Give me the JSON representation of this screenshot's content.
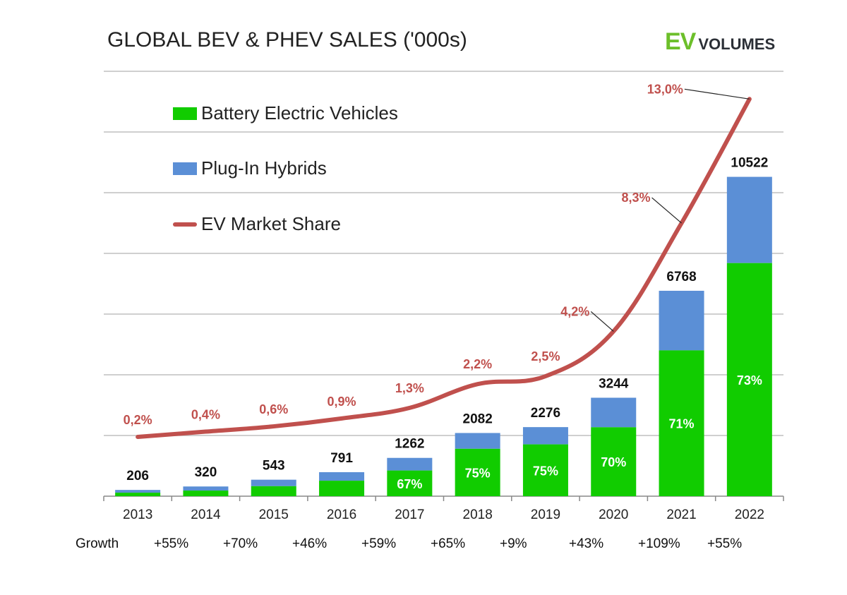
{
  "title": "GLOBAL BEV & PHEV SALES ('000s)",
  "logo": {
    "ev": "EV",
    "volumes": "VOLUMES"
  },
  "colors": {
    "bev": "#11cc00",
    "phev": "#5b8fd6",
    "share": "#c0504d",
    "grid": "#bfbfbf"
  },
  "legend": [
    {
      "label": "Battery Electric Vehicles",
      "type": "box",
      "color": "#11cc00"
    },
    {
      "label": "Plug-In Hybrids",
      "type": "box",
      "color": "#5b8fd6"
    },
    {
      "label": "EV Market Share",
      "type": "line",
      "color": "#c0504d"
    }
  ],
  "growth_label": "Growth",
  "growth": [
    "+55%",
    "+70%",
    "+46%",
    "+59%",
    "+65%",
    "+9%",
    "+43%",
    "+109%",
    "+55%"
  ],
  "chart_data": {
    "type": "bar",
    "stacked": true,
    "title": "GLOBAL BEV & PHEV SALES ('000s)",
    "categories": [
      "2013",
      "2014",
      "2015",
      "2016",
      "2017",
      "2018",
      "2019",
      "2020",
      "2021",
      "2022"
    ],
    "totals": [
      206,
      320,
      543,
      791,
      1262,
      2082,
      2276,
      3244,
      6768,
      10522
    ],
    "series": [
      {
        "name": "Battery Electric Vehicles",
        "values": [
          115,
          185,
          330,
          510,
          846,
          1562,
          1707,
          2271,
          4805,
          7681
        ]
      },
      {
        "name": "Plug-In Hybrids",
        "values": [
          91,
          135,
          213,
          281,
          416,
          520,
          569,
          973,
          1963,
          2841
        ]
      }
    ],
    "bev_share_labels": [
      "",
      "",
      "",
      "",
      "67%",
      "75%",
      "75%",
      "70%",
      "71%",
      "73%"
    ],
    "market_share": {
      "name": "EV Market Share",
      "type": "line",
      "values": [
        0.2,
        0.4,
        0.6,
        0.9,
        1.3,
        2.2,
        2.5,
        4.2,
        8.3,
        13.0
      ],
      "labels": [
        "0,2%",
        "0,4%",
        "0,6%",
        "0,9%",
        "1,3%",
        "2,2%",
        "2,5%",
        "4,2%",
        "8,3%",
        "13,0%"
      ]
    },
    "ylim": [
      0,
      14000
    ],
    "grid": true,
    "legend_placement": "top-left"
  }
}
